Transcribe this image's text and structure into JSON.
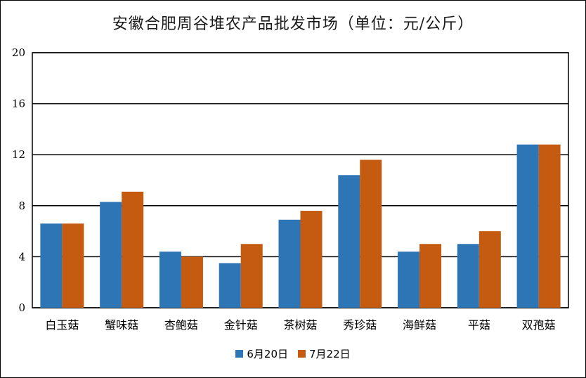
{
  "chart_data": {
    "type": "bar",
    "title": "安徽合肥周谷堆农产品批发市场（单位：元/公斤）",
    "categories": [
      "白玉菇",
      "蟹味菇",
      "杏鲍菇",
      "金针菇",
      "茶树菇",
      "秀珍菇",
      "海鲜菇",
      "平菇",
      "双孢菇"
    ],
    "series": [
      {
        "name": "6月20日",
        "color": "#2E75B6",
        "values": [
          6.6,
          8.3,
          4.4,
          3.5,
          6.9,
          10.4,
          4.4,
          5.0,
          12.8
        ]
      },
      {
        "name": "7月22日",
        "color": "#C55A11",
        "values": [
          6.6,
          9.1,
          4.0,
          5.0,
          7.6,
          11.6,
          5.0,
          6.0,
          12.8
        ]
      }
    ],
    "ylim": [
      0,
      20
    ],
    "yticks": [
      0,
      4,
      8,
      12,
      16,
      20
    ],
    "grid": true,
    "legend": "bottom"
  }
}
